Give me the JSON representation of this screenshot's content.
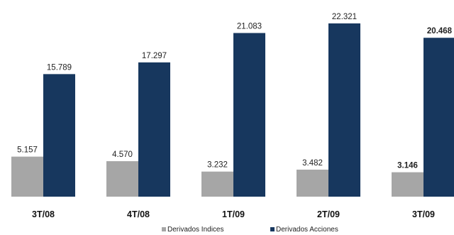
{
  "chart_data": {
    "type": "bar",
    "categories": [
      "3T/08",
      "4T/08",
      "1T/09",
      "2T/09",
      "3T/09"
    ],
    "series": [
      {
        "name": "Derivados Indices",
        "values": [
          5.157,
          4.57,
          3.232,
          3.482,
          3.146
        ],
        "labels": [
          "5.157",
          "4.570",
          "3.232",
          "3.482",
          "3.146"
        ],
        "color": "#a6a6a6"
      },
      {
        "name": "Derivados Acciones",
        "values": [
          15.789,
          17.297,
          21.083,
          22.321,
          20.468
        ],
        "labels": [
          "15.789",
          "17.297",
          "21.083",
          "22.321",
          "20.468"
        ],
        "color": "#17375e"
      }
    ],
    "bold_label_categories": [
      "3T/09"
    ],
    "ylim": [
      0,
      22.5
    ],
    "grid": false,
    "legend_position": "bottom"
  }
}
